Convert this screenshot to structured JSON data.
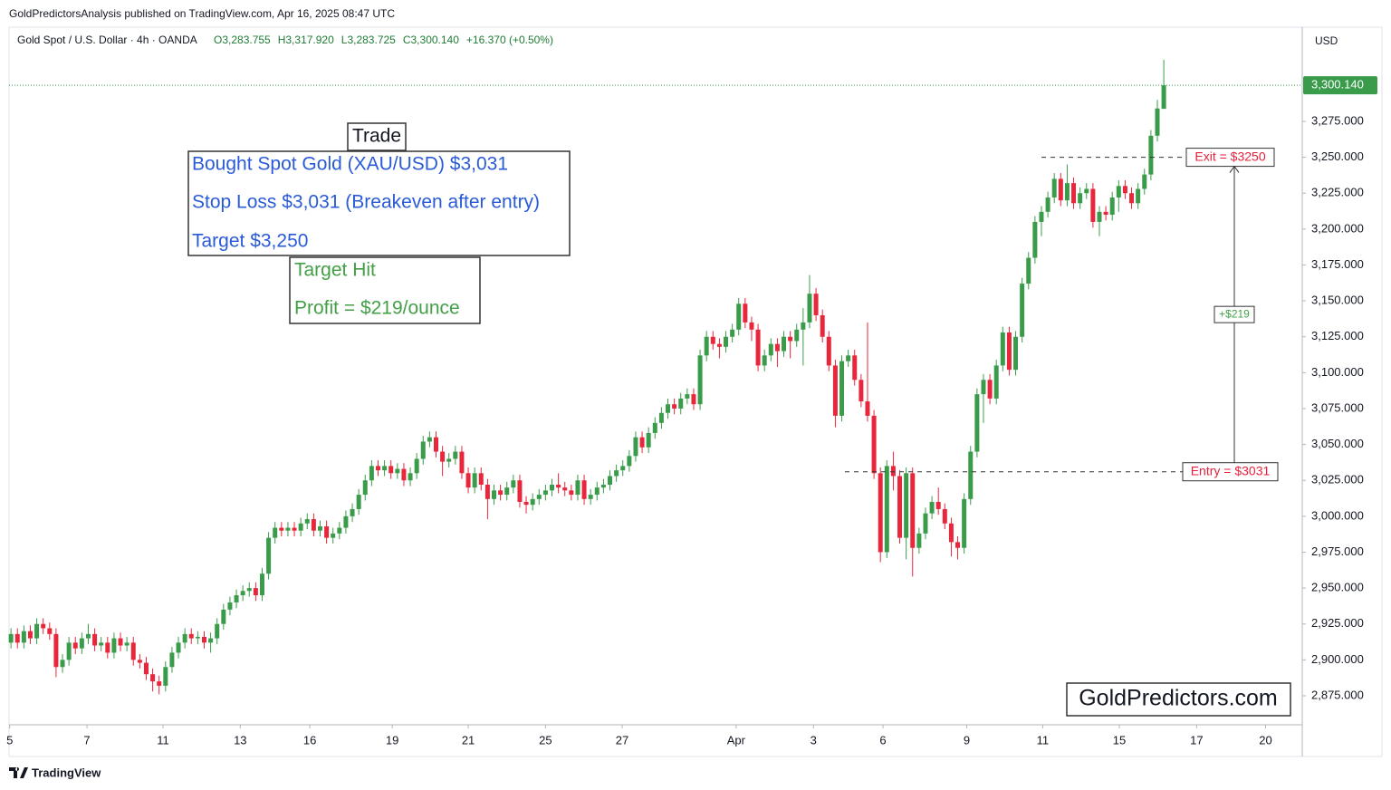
{
  "publisher": "GoldPredictorsAnalysis published on TradingView.com, Apr 16, 2025 08:47 UTC",
  "footer": "TradingView",
  "chart_data": {
    "type": "candlestick",
    "symbol": "Gold Spot / U.S. Dollar · 4h · OANDA",
    "ohlc_labels": [
      "O3,283.755",
      "H3,317.920",
      "L3,283.725",
      "C3,300.140",
      "+16.370 (+0.50%)"
    ],
    "currency": "USD",
    "up_color": "#3a9c4b",
    "down_color": "#e8263c",
    "grid": false,
    "open": [
      2912,
      2918,
      2912,
      2920,
      2915,
      2925,
      2922,
      2918,
      2895,
      2900,
      2912,
      2908,
      2915,
      2918,
      2910,
      2912,
      2905,
      2915,
      2910,
      2912,
      2900,
      2898,
      2890,
      2885,
      2882,
      2895,
      2905,
      2912,
      2918,
      2915,
      2916,
      2912,
      2915,
      2925,
      2935,
      2940,
      2945,
      2948,
      2950,
      2945,
      2960,
      2985,
      2992,
      2990,
      2992,
      2990,
      2995,
      2998,
      2990,
      2993,
      2985,
      2988,
      2992,
      3000,
      3005,
      3015,
      3025,
      3035,
      3032,
      3035,
      3030,
      3033,
      3025,
      3030,
      3040,
      3052,
      3055,
      3045,
      3038,
      3040,
      3045,
      3030,
      3020,
      3030,
      3022,
      3012,
      3018,
      3015,
      3020,
      3025,
      3010,
      3008,
      3012,
      3015,
      3018,
      3022,
      3020,
      3018,
      3015,
      3025,
      3012,
      3015,
      3020,
      3022,
      3028,
      3032,
      3035,
      3042,
      3055,
      3048,
      3058,
      3065,
      3072,
      3078,
      3075,
      3082,
      3085,
      3078,
      3112,
      3125,
      3120,
      3118,
      3125,
      3130,
      3148,
      3135,
      3130,
      3105,
      3112,
      3120,
      3115,
      3125,
      3122,
      3130,
      3135,
      3155,
      3140,
      3125,
      3105,
      3070,
      3108,
      3112,
      3095,
      3080,
      3070,
      3030,
      2975,
      3035,
      3028,
      2985,
      3030,
      2978,
      2988,
      3002,
      3010,
      3005,
      2995,
      2982,
      2978,
      3012,
      3045,
      3085,
      3095,
      3082,
      3105,
      3128,
      3102,
      3125,
      3162,
      3180,
      3205,
      3212,
      3222,
      3235,
      3220,
      3232,
      3218,
      3225,
      3228,
      3205,
      3212,
      3210,
      3222,
      3230,
      3225,
      3218,
      3228,
      3238,
      3265,
      3283.755
    ],
    "high": [
      2922,
      2922,
      2924,
      2924,
      2929,
      2929,
      2926,
      2922,
      2904,
      2916,
      2916,
      2919,
      2925,
      2922,
      2916,
      2916,
      2919,
      2919,
      2916,
      2916,
      2904,
      2902,
      2894,
      2889,
      2899,
      2909,
      2916,
      2922,
      2922,
      2920,
      2920,
      2919,
      2929,
      2939,
      2944,
      2949,
      2952,
      2954,
      2954,
      2964,
      2989,
      2996,
      2996,
      2996,
      2996,
      2999,
      3002,
      3002,
      2997,
      2997,
      2992,
      2996,
      3004,
      3009,
      3019,
      3029,
      3039,
      3039,
      3039,
      3039,
      3037,
      3037,
      3034,
      3044,
      3056,
      3059,
      3059,
      3049,
      3044,
      3049,
      3049,
      3034,
      3034,
      3034,
      3026,
      3022,
      3022,
      3024,
      3029,
      3029,
      3014,
      3016,
      3019,
      3022,
      3026,
      3030,
      3024,
      3022,
      3029,
      3029,
      3019,
      3024,
      3026,
      3032,
      3036,
      3039,
      3046,
      3059,
      3059,
      3062,
      3069,
      3076,
      3082,
      3082,
      3086,
      3089,
      3089,
      3116,
      3129,
      3129,
      3124,
      3129,
      3134,
      3152,
      3152,
      3139,
      3134,
      3116,
      3124,
      3124,
      3129,
      3129,
      3134,
      3145,
      3168,
      3159,
      3144,
      3129,
      3109,
      3112,
      3116,
      3116,
      3099,
      3135,
      3074,
      3034,
      3039,
      3045,
      3032,
      3034,
      3034,
      2992,
      3006,
      3014,
      3020,
      3009,
      2999,
      2986,
      3016,
      3049,
      3089,
      3099,
      3099,
      3109,
      3132,
      3132,
      3129,
      3166,
      3184,
      3209,
      3216,
      3226,
      3239,
      3239,
      3245,
      3236,
      3229,
      3232,
      3232,
      3216,
      3216,
      3226,
      3234,
      3234,
      3229,
      3232,
      3242,
      3269,
      3290,
      3317.92
    ],
    "low": [
      2908,
      2908,
      2908,
      2911,
      2911,
      2918,
      2914,
      2888,
      2891,
      2896,
      2904,
      2904,
      2911,
      2906,
      2906,
      2901,
      2901,
      2906,
      2906,
      2896,
      2894,
      2886,
      2878,
      2876,
      2878,
      2891,
      2901,
      2908,
      2911,
      2911,
      2908,
      2905,
      2911,
      2921,
      2931,
      2936,
      2941,
      2944,
      2941,
      2941,
      2956,
      2981,
      2986,
      2986,
      2986,
      2986,
      2991,
      2986,
      2986,
      2981,
      2981,
      2984,
      2988,
      2996,
      3001,
      3011,
      3021,
      3028,
      3028,
      3026,
      3026,
      3021,
      3021,
      3026,
      3036,
      3048,
      3041,
      3028,
      3034,
      3036,
      3026,
      3016,
      3016,
      3018,
      2998,
      3008,
      3011,
      3011,
      3016,
      3006,
      3002,
      3004,
      3008,
      3011,
      3014,
      3016,
      3014,
      3011,
      3011,
      3008,
      3008,
      3011,
      3016,
      3018,
      3024,
      3028,
      3031,
      3038,
      3044,
      3044,
      3054,
      3061,
      3068,
      3071,
      3071,
      3078,
      3074,
      3074,
      3108,
      3116,
      3110,
      3114,
      3121,
      3126,
      3131,
      3122,
      3101,
      3101,
      3108,
      3104,
      3111,
      3110,
      3118,
      3105,
      3131,
      3136,
      3121,
      3101,
      3062,
      3066,
      3104,
      3091,
      3076,
      3066,
      3026,
      2968,
      2971,
      3018,
      2981,
      2970,
      2958,
      2974,
      2984,
      2998,
      3001,
      2991,
      2972,
      2970,
      2974,
      3008,
      3041,
      3065,
      3078,
      3078,
      3101,
      3098,
      3098,
      3121,
      3158,
      3176,
      3195,
      3208,
      3218,
      3216,
      3216,
      3214,
      3214,
      3221,
      3201,
      3195,
      3206,
      3206,
      3212,
      3221,
      3214,
      3214,
      3224,
      3234,
      3261,
      3283.725
    ],
    "close": [
      2918,
      2912,
      2920,
      2915,
      2925,
      2922,
      2918,
      2895,
      2900,
      2912,
      2908,
      2915,
      2918,
      2910,
      2912,
      2905,
      2915,
      2910,
      2912,
      2900,
      2898,
      2890,
      2885,
      2882,
      2895,
      2905,
      2912,
      2918,
      2915,
      2916,
      2912,
      2915,
      2925,
      2935,
      2940,
      2945,
      2948,
      2950,
      2945,
      2960,
      2985,
      2992,
      2990,
      2992,
      2990,
      2995,
      2998,
      2990,
      2993,
      2985,
      2988,
      2992,
      3000,
      3005,
      3015,
      3025,
      3035,
      3032,
      3035,
      3030,
      3033,
      3025,
      3030,
      3040,
      3052,
      3055,
      3045,
      3038,
      3040,
      3045,
      3030,
      3020,
      3030,
      3022,
      3012,
      3018,
      3015,
      3020,
      3025,
      3010,
      3008,
      3012,
      3015,
      3018,
      3022,
      3020,
      3018,
      3015,
      3025,
      3012,
      3015,
      3020,
      3022,
      3028,
      3032,
      3035,
      3042,
      3055,
      3048,
      3058,
      3065,
      3072,
      3078,
      3075,
      3082,
      3085,
      3078,
      3112,
      3125,
      3120,
      3118,
      3125,
      3130,
      3148,
      3135,
      3130,
      3105,
      3112,
      3120,
      3115,
      3125,
      3122,
      3130,
      3135,
      3155,
      3140,
      3125,
      3105,
      3070,
      3108,
      3112,
      3095,
      3080,
      3070,
      3030,
      2975,
      3035,
      3028,
      2985,
      3030,
      2978,
      2988,
      3002,
      3010,
      3005,
      2995,
      2982,
      2978,
      3012,
      3045,
      3085,
      3095,
      3082,
      3105,
      3128,
      3102,
      3125,
      3162,
      3180,
      3205,
      3212,
      3222,
      3235,
      3220,
      3232,
      3218,
      3225,
      3228,
      3205,
      3212,
      3210,
      3222,
      3230,
      3225,
      3218,
      3228,
      3238,
      3265,
      3284,
      3300.14
    ],
    "xlim": [
      -0.3,
      200.5
    ],
    "xticks": [
      {
        "value": -0.2,
        "label": "5"
      },
      {
        "value": 11.8,
        "label": "7"
      },
      {
        "value": 23.6,
        "label": "11"
      },
      {
        "value": 35.6,
        "label": "13"
      },
      {
        "value": 46.4,
        "label": "16"
      },
      {
        "value": 59.2,
        "label": "19"
      },
      {
        "value": 71,
        "label": "21"
      },
      {
        "value": 83,
        "label": "25"
      },
      {
        "value": 94.9,
        "label": "27"
      },
      {
        "value": 112.6,
        "label": "Apr"
      },
      {
        "value": 124.6,
        "label": "3"
      },
      {
        "value": 135.4,
        "label": "6"
      },
      {
        "value": 148.4,
        "label": "9"
      },
      {
        "value": 160.2,
        "label": "11"
      },
      {
        "value": 172.1,
        "label": "15"
      },
      {
        "value": 184.1,
        "label": "17"
      },
      {
        "value": 194.8,
        "label": "20"
      }
    ],
    "ylim": [
      2854.8,
      3340.6
    ],
    "yticks": [
      {
        "value": 2875,
        "label": "2,875.000"
      },
      {
        "value": 2900,
        "label": "2,900.000"
      },
      {
        "value": 2925,
        "label": "2,925.000"
      },
      {
        "value": 2950,
        "label": "2,950.000"
      },
      {
        "value": 2975,
        "label": "2,975.000"
      },
      {
        "value": 3000,
        "label": "3,000.000"
      },
      {
        "value": 3025,
        "label": "3,025.000"
      },
      {
        "value": 3050,
        "label": "3,050.000"
      },
      {
        "value": 3075,
        "label": "3,075.000"
      },
      {
        "value": 3100,
        "label": "3,100.000"
      },
      {
        "value": 3125,
        "label": "3,125.000"
      },
      {
        "value": 3150,
        "label": "3,150.000"
      },
      {
        "value": 3175,
        "label": "3,175.000"
      },
      {
        "value": 3200,
        "label": "3,200.000"
      },
      {
        "value": 3225,
        "label": "3,225.000"
      },
      {
        "value": 3250,
        "label": "3,250.000"
      },
      {
        "value": 3275,
        "label": "3,275.000"
      }
    ],
    "last_price": {
      "value": 3300.14,
      "label": "3,300.140"
    },
    "levels": [
      {
        "label": "Exit = $3250",
        "value": 3250
      },
      {
        "label": "Entry = $3031",
        "value": 3031
      }
    ],
    "move_label": "+$219",
    "trade_box": {
      "title": "Trade",
      "lines": [
        "Bought Spot Gold (XAU/USD) $3,031",
        "Stop Loss $3,031 (Breakeven after entry)",
        "Target $3,250"
      ]
    },
    "result_box": {
      "lines": [
        "Target Hit",
        "Profit = $219/ounce"
      ]
    },
    "watermark": "GoldPredictors.com"
  }
}
